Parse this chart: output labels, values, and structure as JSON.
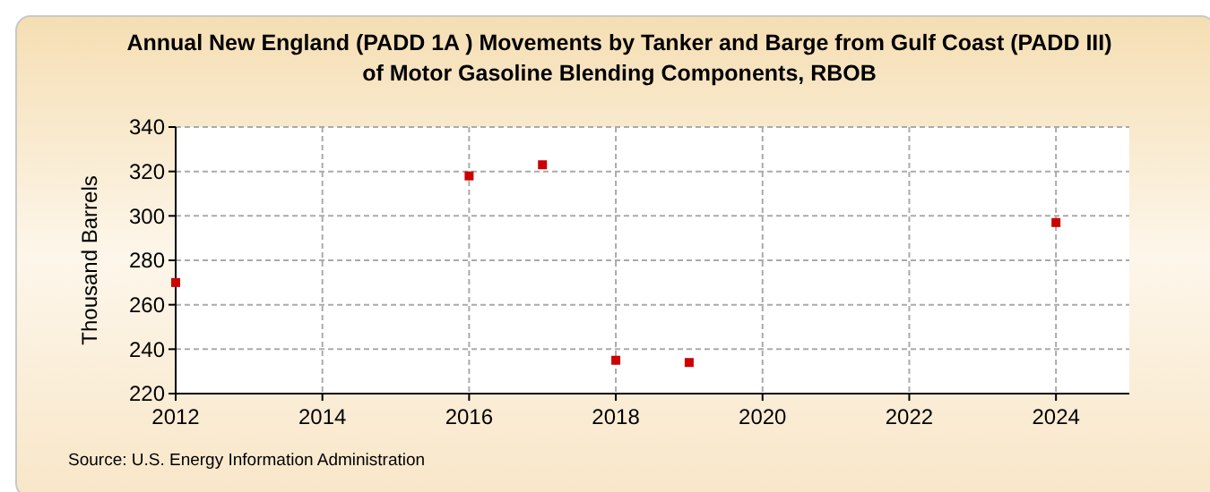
{
  "chart_data": {
    "type": "scatter",
    "title": "Annual New England (PADD 1A ) Movements by Tanker and Barge from  Gulf Coast (PADD III) of Motor Gasoline Blending Components, RBOB",
    "ylabel": "Thousand Barrels",
    "x": [
      2012,
      2016,
      2017,
      2018,
      2019,
      2024
    ],
    "series": [
      {
        "color": "#cc0000",
        "values": [
          270,
          318,
          323,
          235,
          234,
          297
        ]
      }
    ],
    "xlim": [
      2012,
      2025
    ],
    "xticks": [
      2012,
      2014,
      2016,
      2018,
      2020,
      2022,
      2024
    ],
    "ylim": [
      220,
      340
    ],
    "yticks": [
      220,
      240,
      260,
      280,
      300,
      320,
      340
    ],
    "grid": true,
    "marker": "square",
    "annotations": [
      "Source: U.S. Energy Information Administration"
    ]
  }
}
